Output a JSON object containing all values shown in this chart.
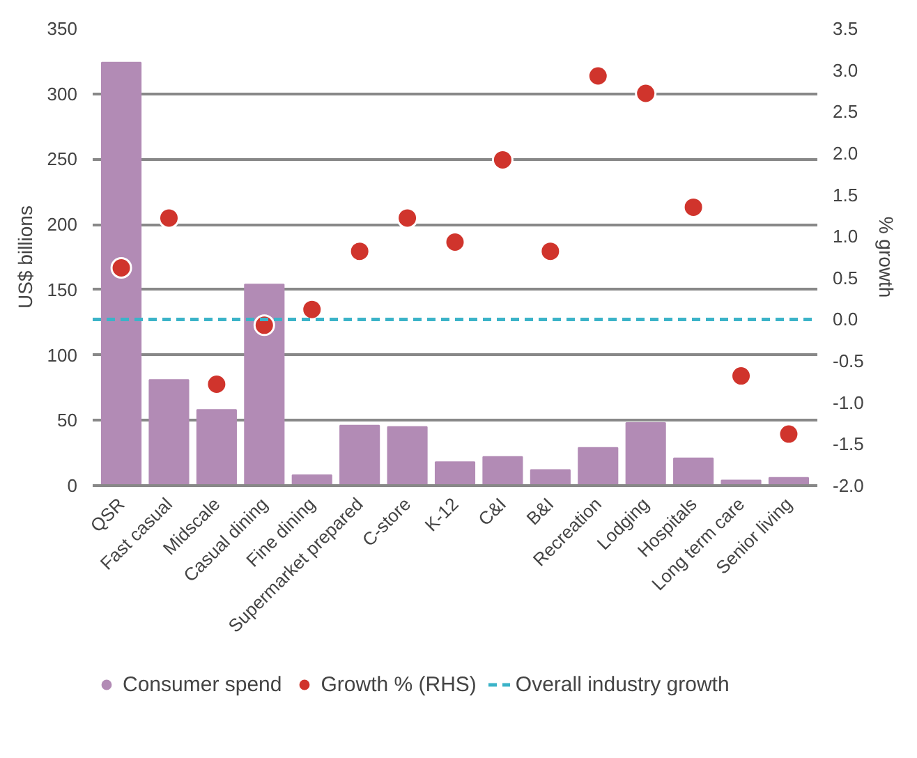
{
  "chart_data": {
    "type": "bar",
    "ylabel": "US$ billions",
    "y2label": "% growth",
    "categories": [
      "QSR",
      "Fast casual",
      "Midscale",
      "Casual dining",
      "Fine dining",
      "Supermarket prepared",
      "C-store",
      "K-12",
      "C&I",
      "B&I",
      "Recreation",
      "Lodging",
      "Hospitals",
      "Long term care",
      "Senior living"
    ],
    "series": [
      {
        "name": "Consumer spend",
        "color": "#b28bb5",
        "values": [
          324,
          81,
          58,
          154,
          8,
          46,
          45,
          18,
          22,
          12,
          29,
          48,
          21,
          4,
          6
        ]
      },
      {
        "name": "Growth % (RHS)",
        "type": "scatter",
        "axis": "y2",
        "color": "#d0342c",
        "values": [
          0.62,
          1.22,
          -0.78,
          -0.07,
          0.12,
          0.82,
          1.22,
          0.93,
          1.92,
          0.82,
          2.93,
          2.72,
          1.35,
          -0.68,
          -1.38
        ]
      }
    ],
    "ylim": [
      0,
      350
    ],
    "yticks": [
      0,
      50,
      100,
      150,
      200,
      250,
      300,
      350
    ],
    "y2lim": [
      -2.0,
      3.5
    ],
    "y2ticks": [
      {
        "value": -2,
        "label": "-2.0"
      },
      {
        "value": -1.5,
        "label": "-1.5"
      },
      {
        "value": -1,
        "label": "-1.0"
      },
      {
        "value": -0.5,
        "label": "-0.5"
      },
      {
        "value": 0,
        "label": "0.0"
      },
      {
        "value": 0.5,
        "label": "0.5"
      },
      {
        "value": 1,
        "label": "1.0"
      },
      {
        "value": 1.5,
        "label": "1.5"
      },
      {
        "value": 2,
        "label": "2.0"
      },
      {
        "value": 2.5,
        "label": "2.5"
      },
      {
        "value": 3,
        "label": "3.0"
      },
      {
        "value": 3.5,
        "label": "3.5"
      }
    ],
    "ref_lines": [
      {
        "axis": "y2",
        "value": 0,
        "label": "Overall industry growth",
        "color": "#3bb3c8",
        "line_style": "dashed"
      }
    ],
    "grid": "y",
    "legend": "bottom",
    "marker": "circle"
  }
}
